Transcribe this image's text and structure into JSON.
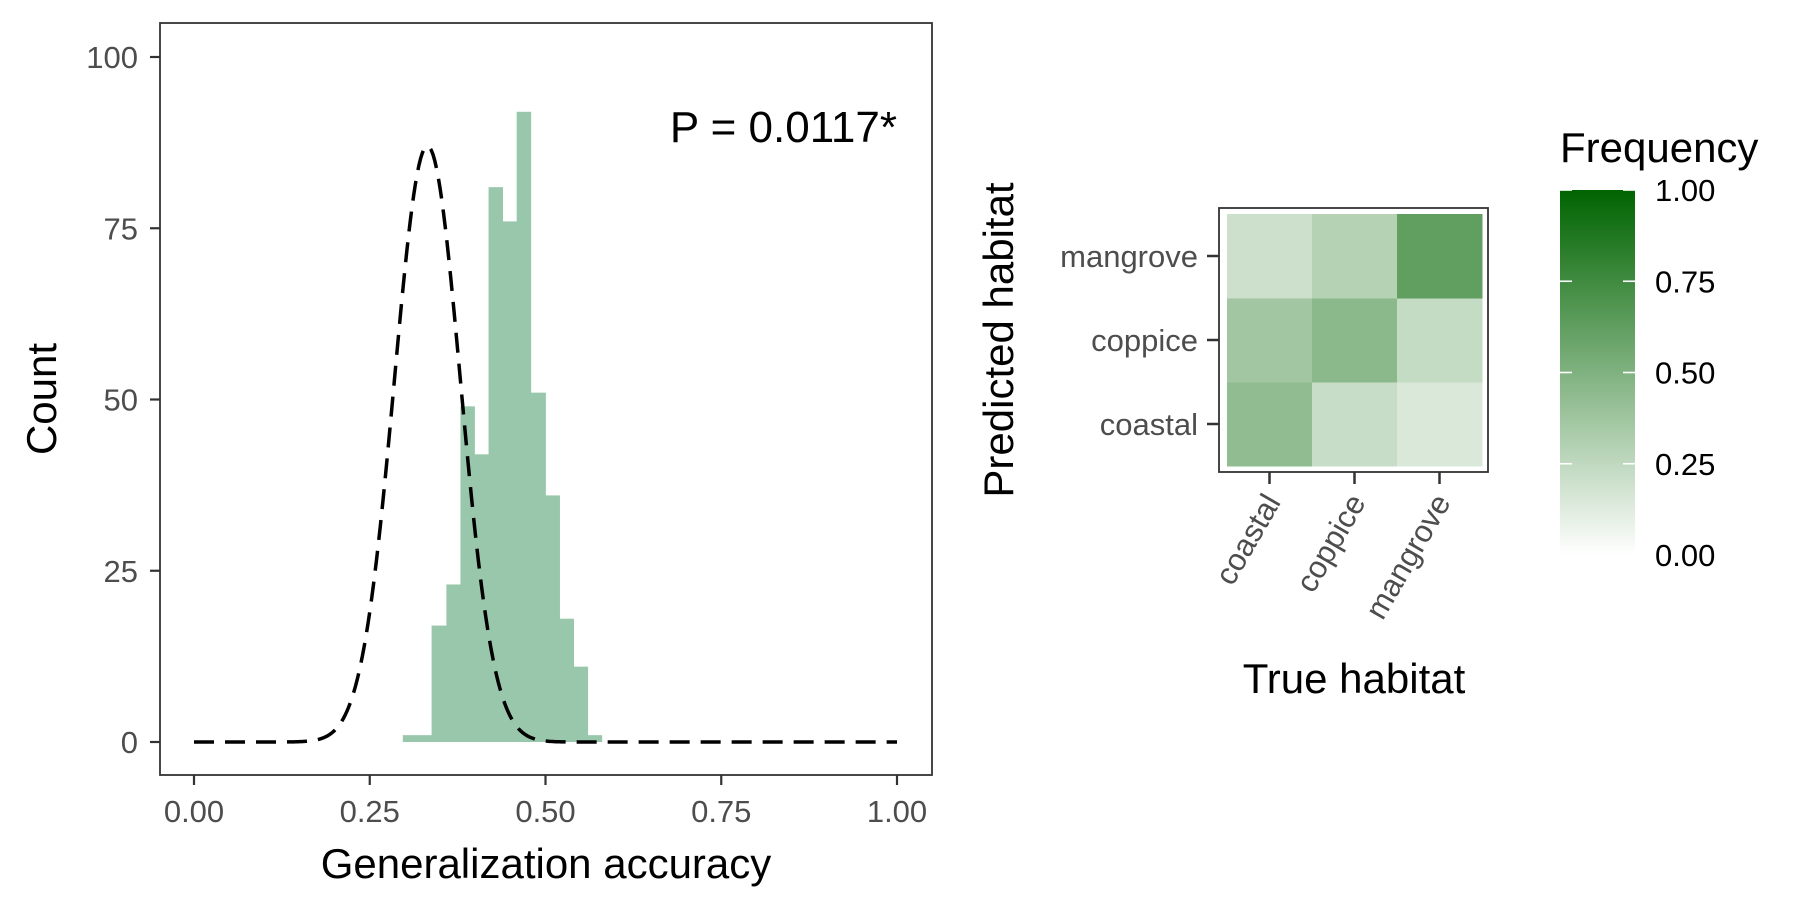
{
  "chart_data": [
    {
      "type": "bar",
      "subtype": "histogram_with_density",
      "xlabel": "Generalization accuracy",
      "ylabel": "Count",
      "xlim": [
        0,
        1
      ],
      "ylim": [
        0,
        100
      ],
      "x_ticks": [
        "0.00",
        "0.25",
        "0.50",
        "0.75",
        "1.00"
      ],
      "y_ticks": [
        "0",
        "25",
        "50",
        "75",
        "100"
      ],
      "annotation": "P = 0.0117*",
      "grid": false,
      "colors": {
        "bars": "#99c7ab",
        "density_line": "#000000"
      },
      "bins": [
        {
          "x0": 0.297,
          "x1": 0.338,
          "count": 1
        },
        {
          "x0": 0.338,
          "x1": 0.359,
          "count": 17
        },
        {
          "x0": 0.359,
          "x1": 0.379,
          "count": 23
        },
        {
          "x0": 0.379,
          "x1": 0.399,
          "count": 49
        },
        {
          "x0": 0.399,
          "x1": 0.419,
          "count": 42
        },
        {
          "x0": 0.419,
          "x1": 0.439,
          "count": 81
        },
        {
          "x0": 0.439,
          "x1": 0.459,
          "count": 76
        },
        {
          "x0": 0.459,
          "x1": 0.479,
          "count": 92
        },
        {
          "x0": 0.479,
          "x1": 0.5,
          "count": 51
        },
        {
          "x0": 0.5,
          "x1": 0.52,
          "count": 36
        },
        {
          "x0": 0.52,
          "x1": 0.54,
          "count": 18
        },
        {
          "x0": 0.54,
          "x1": 0.56,
          "count": 11
        },
        {
          "x0": 0.56,
          "x1": 0.58,
          "count": 1
        }
      ],
      "density_line": {
        "style": "dashed",
        "mean": 0.332,
        "sd": 0.047,
        "peak": 87
      }
    },
    {
      "type": "heatmap",
      "xlabel": "True habitat",
      "ylabel": "Predicted habitat",
      "x_categories": [
        "coastal",
        "coppice",
        "mangrove"
      ],
      "y_categories": [
        "coastal",
        "coppice",
        "mangrove"
      ],
      "cells": [
        {
          "true": "coastal",
          "predicted": "coastal",
          "value": 0.43
        },
        {
          "true": "coppice",
          "predicted": "coastal",
          "value": 0.22
        },
        {
          "true": "mangrove",
          "predicted": "coastal",
          "value": 0.15
        },
        {
          "true": "coastal",
          "predicted": "coppice",
          "value": 0.37
        },
        {
          "true": "coppice",
          "predicted": "coppice",
          "value": 0.45
        },
        {
          "true": "mangrove",
          "predicted": "coppice",
          "value": 0.23
        },
        {
          "true": "coastal",
          "predicted": "mangrove",
          "value": 0.2
        },
        {
          "true": "coppice",
          "predicted": "mangrove",
          "value": 0.29
        },
        {
          "true": "mangrove",
          "predicted": "mangrove",
          "value": 0.62
        }
      ],
      "legend": {
        "title": "Frequency",
        "ticks": [
          "0.00",
          "0.25",
          "0.50",
          "0.75",
          "1.00"
        ],
        "range": [
          0,
          1
        ],
        "low_color": "#ffffff",
        "high_color": "#006400",
        "position": "right"
      }
    }
  ]
}
